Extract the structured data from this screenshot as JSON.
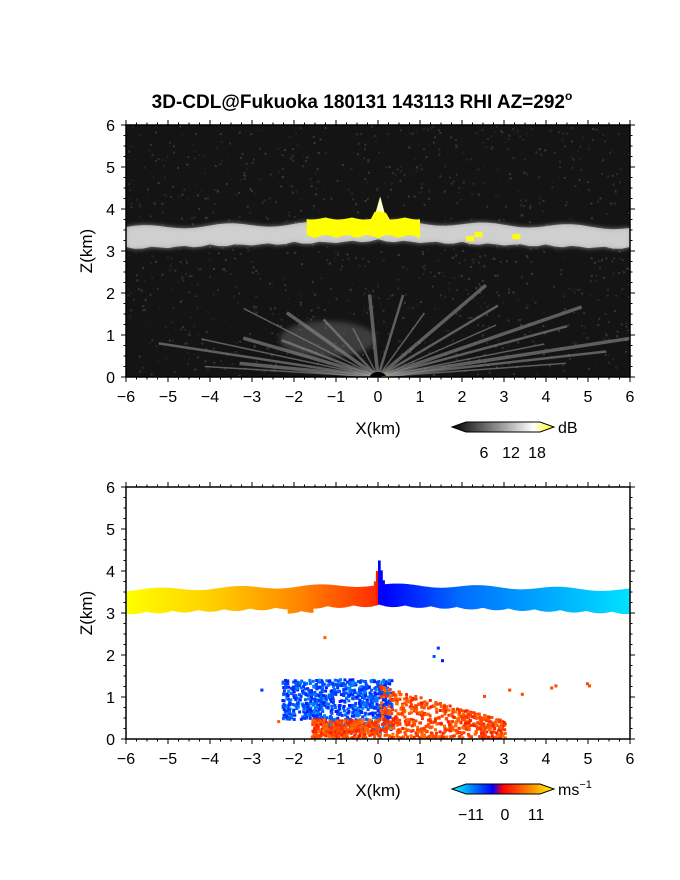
{
  "title": "3D-CDL@Fukuoka 180131 143113 RHI AZ=292",
  "title_superscript": "o",
  "chart_data": [
    {
      "type": "heatmap",
      "panel": "reflectivity",
      "xlabel": "X(km)",
      "ylabel": "Z(km)",
      "xlim": [
        -6,
        6
      ],
      "ylim": [
        0,
        6
      ],
      "xticks": [
        -6,
        -5,
        -4,
        -3,
        -2,
        -1,
        0,
        1,
        2,
        3,
        4,
        5,
        6
      ],
      "yticks": [
        0,
        1,
        2,
        3,
        4,
        5,
        6
      ],
      "background": "#141414",
      "colorbar": {
        "unit": "dB",
        "ticks": [
          6,
          12,
          18
        ],
        "colors": [
          "#000000",
          "#ffffff",
          "#ffff00"
        ]
      },
      "features": {
        "layer_z": 3.5,
        "layer_x": [
          -6,
          6
        ],
        "peak_top_z": 4.3,
        "peak_x": 0.05,
        "strong_echo_x": [
          -1.7,
          1.0
        ],
        "strong_echo_z": [
          3.3,
          3.8
        ],
        "ground_clutter_top_z": 1.6
      }
    },
    {
      "type": "heatmap",
      "panel": "doppler_velocity",
      "xlabel": "X(km)",
      "ylabel": "Z(km)",
      "xlim": [
        -6,
        6
      ],
      "ylim": [
        0,
        6
      ],
      "xticks": [
        -6,
        -5,
        -4,
        -3,
        -2,
        -1,
        0,
        1,
        2,
        3,
        4,
        5,
        6
      ],
      "yticks": [
        0,
        1,
        2,
        3,
        4,
        5,
        6
      ],
      "colorbar": {
        "unit": "ms",
        "unit_superscript": "−1",
        "ticks": [
          "−11",
          "0",
          "11"
        ],
        "range": [
          -11,
          11
        ],
        "colors": [
          "#00ffff",
          "#0000ff",
          "#ff0000",
          "#ffff00"
        ]
      },
      "features": {
        "layer_z": 3.45,
        "layer_x": [
          -6,
          6
        ],
        "peak_top_z": 4.25,
        "peak_x": 0.0,
        "layer_velocity_at_x": {
          "x": [
            -6,
            -4,
            -2,
            -0.05,
            0.05,
            2,
            4,
            6
          ],
          "v": [
            11,
            9,
            6,
            2,
            -2,
            -6,
            -8,
            -10
          ]
        },
        "low_level_blue_region": {
          "x": [
            -2.3,
            0.3
          ],
          "z": [
            0.2,
            1.45
          ]
        },
        "low_level_red_region": {
          "x": [
            -1.6,
            3.0
          ],
          "z": [
            0.05,
            1.3
          ]
        }
      }
    }
  ]
}
